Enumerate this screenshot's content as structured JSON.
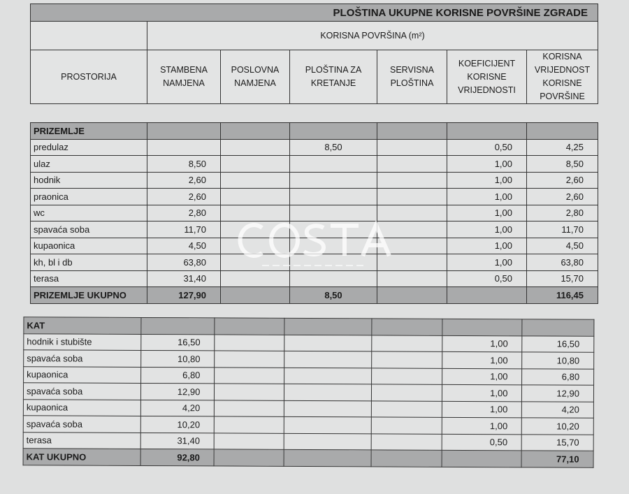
{
  "title": "PLOŠTINA UKUPNE KORISNE POVRŠINE ZGRADE",
  "subtitle": "KORISNA POVRŠINA (m²)",
  "columns": [
    "PROSTORIJA",
    "STAMBENA NAMJENA",
    "POSLOVNA NAMJENA",
    "PLOŠTINA ZA KRETANJE",
    "SERVISNA PLOŠTINA",
    "KOEFICIJENT KORISNE VRIJEDNOSTI",
    "KORISNA VRIJEDNOST KORISNE POVRŠINE"
  ],
  "watermark": {
    "brand": "COSTA",
    "tagline": "NEKRETNINE"
  },
  "sections": [
    {
      "name": "PRIZEMLJE",
      "rows": [
        [
          "predulaz",
          "",
          "",
          "8,50",
          "",
          "0,50",
          "4,25"
        ],
        [
          "ulaz",
          "8,50",
          "",
          "",
          "",
          "1,00",
          "8,50"
        ],
        [
          "hodnik",
          "2,60",
          "",
          "",
          "",
          "1,00",
          "2,60"
        ],
        [
          "praonica",
          "2,60",
          "",
          "",
          "",
          "1,00",
          "2,60"
        ],
        [
          "wc",
          "2,80",
          "",
          "",
          "",
          "1,00",
          "2,80"
        ],
        [
          "spavaća soba",
          "11,70",
          "",
          "",
          "",
          "1,00",
          "11,70"
        ],
        [
          "kupaonica",
          "4,50",
          "",
          "",
          "",
          "1,00",
          "4,50"
        ],
        [
          "kh, bl i db",
          "63,80",
          "",
          "",
          "",
          "1,00",
          "63,80"
        ],
        [
          "terasa",
          "31,40",
          "",
          "",
          "",
          "0,50",
          "15,70"
        ]
      ],
      "total": [
        "PRIZEMLJE UKUPNO",
        "127,90",
        "",
        "8,50",
        "",
        "",
        "116,45"
      ]
    },
    {
      "name": "KAT",
      "rows": [
        [
          "hodnik i stubište",
          "16,50",
          "",
          "",
          "",
          "1,00",
          "16,50"
        ],
        [
          "spavaća soba",
          "10,80",
          "",
          "",
          "",
          "1,00",
          "10,80"
        ],
        [
          "kupaonica",
          "6,80",
          "",
          "",
          "",
          "1,00",
          "6,80"
        ],
        [
          "spavaća soba",
          "12,90",
          "",
          "",
          "",
          "1,00",
          "12,90"
        ],
        [
          "kupaonica",
          "4,20",
          "",
          "",
          "",
          "1,00",
          "4,20"
        ],
        [
          "spavaća soba",
          "10,20",
          "",
          "",
          "",
          "1,00",
          "10,20"
        ],
        [
          "terasa",
          "31,40",
          "",
          "",
          "",
          "0,50",
          "15,70"
        ]
      ],
      "total": [
        "KAT UKUPNO",
        "92,80",
        "",
        "",
        "",
        "",
        "77,10"
      ]
    }
  ]
}
